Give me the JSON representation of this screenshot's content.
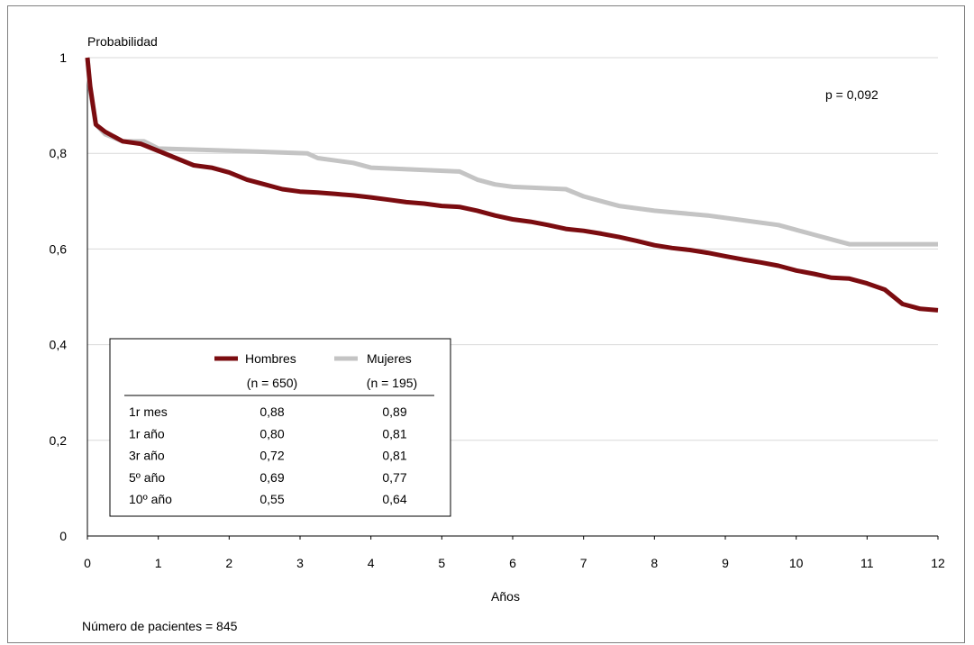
{
  "chart_data": {
    "type": "line",
    "ylabel": "Probabilidad",
    "xlabel": "Años",
    "xlim": [
      0,
      12
    ],
    "ylim": [
      0,
      1
    ],
    "x_ticks": [
      "0",
      "1",
      "2",
      "3",
      "4",
      "5",
      "6",
      "7",
      "8",
      "9",
      "10",
      "11",
      "12"
    ],
    "y_ticks": [
      "0",
      "0,2",
      "0,4",
      "0,6",
      "0,8",
      "1"
    ],
    "grid": true,
    "annotation": "p = 0,092",
    "footnote": "Número de pacientes = 845",
    "series": [
      {
        "name": "Hombres",
        "n_label": "(n = 650)",
        "color": "#7b0c10",
        "x": [
          0,
          0.04,
          0.12,
          0.25,
          0.5,
          0.75,
          1.0,
          1.25,
          1.5,
          1.75,
          2.0,
          2.25,
          2.5,
          2.75,
          3.0,
          3.25,
          3.5,
          3.75,
          4.0,
          4.25,
          4.5,
          4.75,
          5.0,
          5.25,
          5.5,
          5.75,
          6.0,
          6.25,
          6.5,
          6.75,
          7.0,
          7.25,
          7.5,
          7.75,
          8.0,
          8.25,
          8.5,
          8.75,
          9.0,
          9.25,
          9.5,
          9.75,
          10.0,
          10.25,
          10.5,
          10.75,
          11.0,
          11.25,
          11.5,
          11.75,
          12.0
        ],
        "y": [
          1.0,
          0.94,
          0.86,
          0.845,
          0.825,
          0.82,
          0.805,
          0.79,
          0.775,
          0.77,
          0.76,
          0.745,
          0.735,
          0.725,
          0.72,
          0.718,
          0.715,
          0.712,
          0.708,
          0.703,
          0.698,
          0.695,
          0.69,
          0.688,
          0.68,
          0.67,
          0.662,
          0.657,
          0.65,
          0.642,
          0.638,
          0.632,
          0.625,
          0.617,
          0.608,
          0.602,
          0.598,
          0.592,
          0.585,
          0.578,
          0.572,
          0.565,
          0.555,
          0.548,
          0.54,
          0.538,
          0.528,
          0.515,
          0.485,
          0.475,
          0.472
        ]
      },
      {
        "name": "Mujeres",
        "n_label": "(n = 195)",
        "color": "#c4c4c4",
        "x": [
          0,
          0.04,
          0.12,
          0.25,
          0.5,
          0.8,
          1.0,
          2.1,
          3.1,
          3.25,
          3.5,
          3.75,
          4.0,
          5.25,
          5.5,
          5.75,
          6.0,
          6.75,
          7.0,
          7.25,
          7.5,
          8.0,
          8.75,
          9.25,
          9.75,
          10.0,
          10.25,
          10.5,
          10.75,
          12.0
        ],
        "y": [
          1.0,
          0.93,
          0.86,
          0.84,
          0.825,
          0.825,
          0.81,
          0.805,
          0.8,
          0.79,
          0.785,
          0.78,
          0.77,
          0.762,
          0.745,
          0.735,
          0.73,
          0.725,
          0.71,
          0.7,
          0.69,
          0.68,
          0.67,
          0.66,
          0.65,
          0.64,
          0.63,
          0.62,
          0.61,
          0.61
        ]
      }
    ]
  },
  "table": {
    "rows": [
      {
        "label": "1r mes",
        "hombres": "0,88",
        "mujeres": "0,89"
      },
      {
        "label": "1r año",
        "hombres": "0,80",
        "mujeres": "0,81"
      },
      {
        "label": "3r año",
        "hombres": "0,72",
        "mujeres": "0,81"
      },
      {
        "label": "5º año",
        "hombres": "0,69",
        "mujeres": "0,77"
      },
      {
        "label": "10º año",
        "hombres": "0,55",
        "mujeres": "0,64"
      }
    ]
  }
}
